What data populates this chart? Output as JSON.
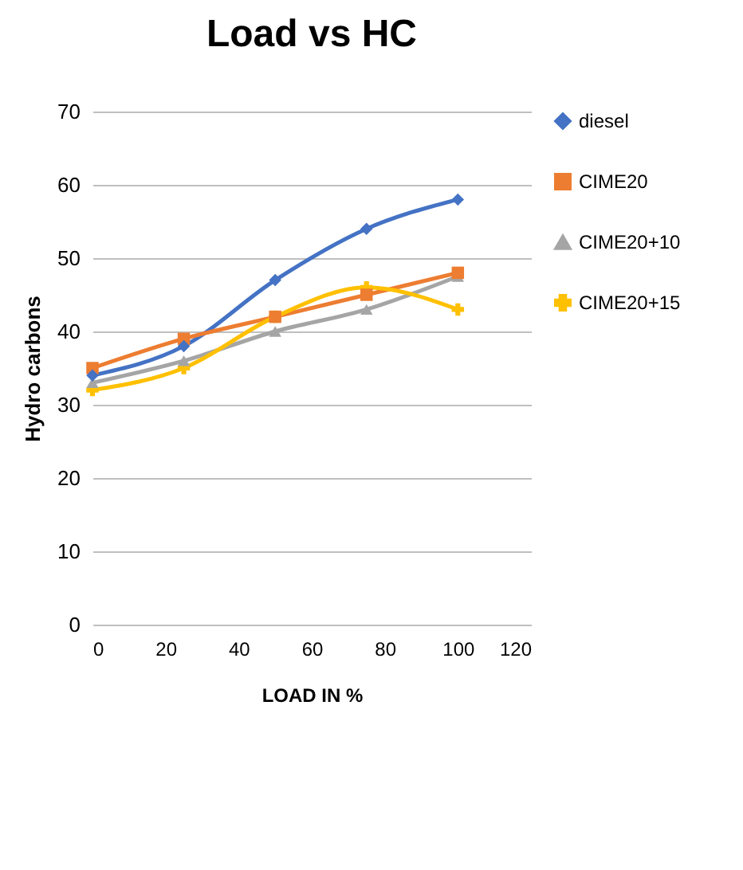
{
  "chart_data": {
    "type": "line",
    "title": "Load vs HC",
    "xlabel": "LOAD IN %",
    "ylabel": "Hydro carbons",
    "x": [
      0,
      25,
      50,
      75,
      100
    ],
    "series": [
      {
        "name": "diesel",
        "color": "#4472c4",
        "marker": "diamond",
        "values": [
          34,
          38,
          47,
          54,
          58
        ]
      },
      {
        "name": "CIME20",
        "color": "#ed7d31",
        "marker": "square",
        "values": [
          35,
          39,
          42,
          45,
          48
        ]
      },
      {
        "name": "CIME20+10",
        "color": "#a5a5a5",
        "marker": "triangle",
        "values": [
          33,
          36,
          40,
          43,
          47.5
        ]
      },
      {
        "name": "CIME20+15",
        "color": "#ffc000",
        "marker": "cross",
        "values": [
          32,
          35,
          42,
          46,
          43
        ]
      }
    ],
    "xlim": [
      0,
      120
    ],
    "xticks": [
      0,
      20,
      40,
      60,
      80,
      100,
      120
    ],
    "ylim": [
      0,
      70
    ],
    "yticks": [
      0,
      10,
      20,
      30,
      40,
      50,
      60,
      70
    ],
    "grid": "y",
    "legend": "right",
    "line_style": "solid"
  }
}
